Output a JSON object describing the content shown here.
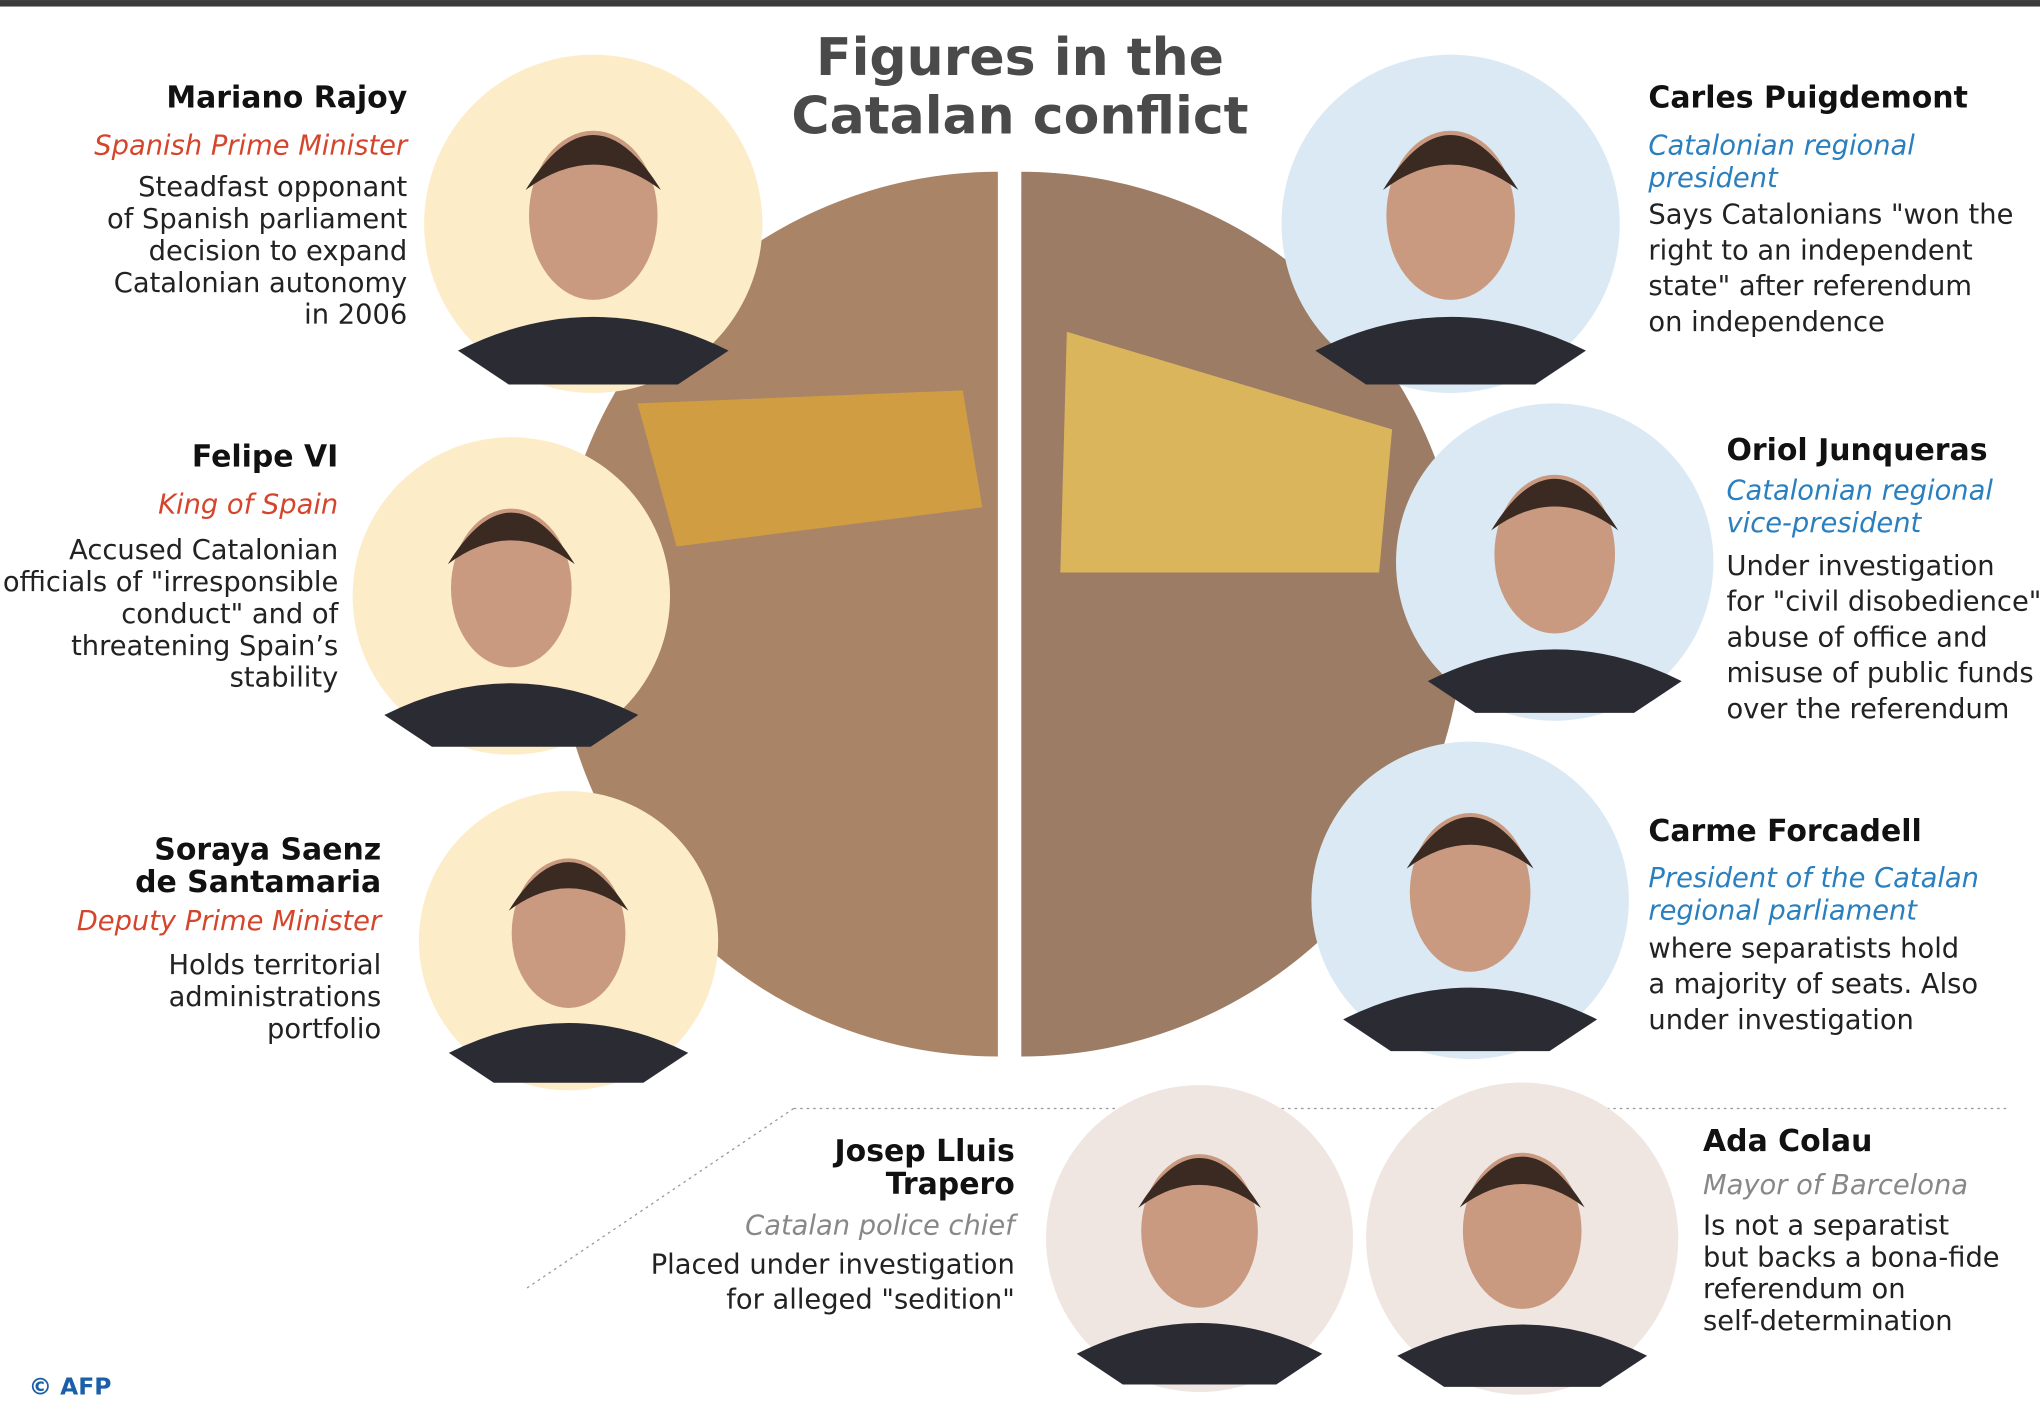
{
  "title": [
    "Figures in the",
    "Catalan conflict"
  ],
  "people": [
    {
      "name": [
        "Mariano Rajoy"
      ],
      "role": [
        "Spanish Prime Minister"
      ],
      "description": [
        "Steadfast opponant",
        "of Spanish parliament",
        "decision to expand",
        "Catalonian autonomy",
        "in 2006"
      ]
    },
    {
      "name": [
        "Felipe VI"
      ],
      "role": [
        "King of Spain"
      ],
      "description": [
        "Accused Catalonian",
        "officials of \"irresponsible",
        "conduct\" and of",
        "threatening Spain’s",
        "stability"
      ]
    },
    {
      "name": [
        "Soraya Saenz",
        "de Santamaria"
      ],
      "role": [
        "Deputy Prime Minister"
      ],
      "description": [
        "Holds territorial",
        "administrations",
        "portfolio"
      ]
    },
    {
      "name": [
        "Carles Puigdemont"
      ],
      "role": [
        "Catalonian regional",
        "president"
      ],
      "description": [
        "Says Catalonians \"won the",
        "right to an independent",
        "state\" after referendum",
        "on independence"
      ]
    },
    {
      "name": [
        "Oriol Junqueras"
      ],
      "role": [
        "Catalonian regional",
        "vice-president"
      ],
      "description": [
        "Under investigation",
        "for \"civil disobedience\"",
        "abuse of office and",
        "misuse of public funds",
        "over the referendum"
      ]
    },
    {
      "name": [
        "Carme Forcadell"
      ],
      "role": [
        "President of the Catalan",
        "regional parliament"
      ],
      "description": [
        "where separatists hold",
        "a majority of seats. Also",
        "under investigation"
      ]
    },
    {
      "name": [
        "Josep Lluis",
        "Trapero"
      ],
      "role": [
        "Catalan police chief"
      ],
      "description": [
        "Placed under investigation",
        "for alleged \"sedition\""
      ]
    },
    {
      "name": [
        "Ada Colau"
      ],
      "role": [
        "Mayor of Barcelona"
      ],
      "description": [
        "Is not a separatist",
        "but backs a bona-fide",
        "referendum on",
        "self-determination"
      ]
    }
  ],
  "credit": "© AFP"
}
